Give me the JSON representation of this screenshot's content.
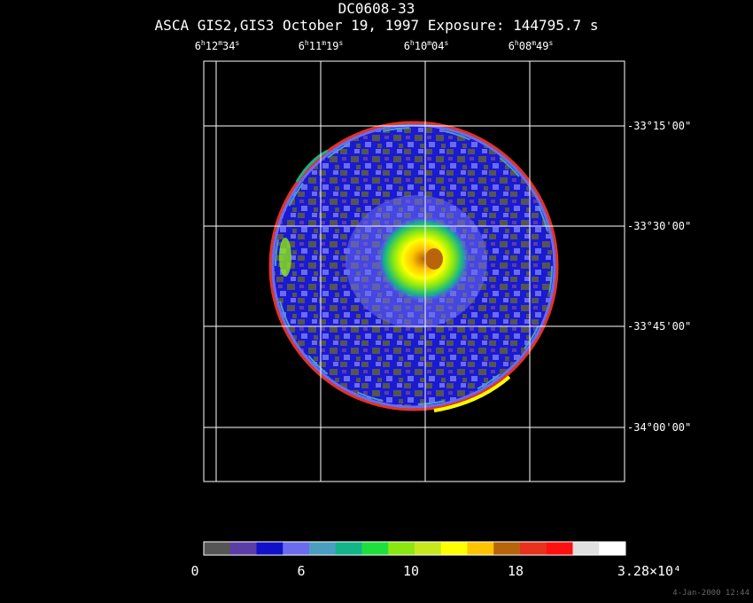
{
  "title": "DC0608-33",
  "subtitle": "ASCA GIS2,GIS3 October 19, 1997 Exposure: 144795.7 s",
  "ra_labels": [
    {
      "h": "6",
      "m": "12",
      "s": "34"
    },
    {
      "h": "6",
      "m": "11",
      "s": "19"
    },
    {
      "h": "6",
      "m": "10",
      "s": "04"
    },
    {
      "h": "6",
      "m": "08",
      "s": "49"
    }
  ],
  "dec_labels": [
    "-33°15'00\"",
    "-33°30'00\"",
    "-33°45'00\"",
    "-34°00'00\""
  ],
  "colorbar": {
    "colors": [
      "#555555",
      "#5b3da8",
      "#1010c8",
      "#6b6bef",
      "#4a9ec0",
      "#12b48a",
      "#1ee03c",
      "#8ae810",
      "#c8e81e",
      "#ffff00",
      "#ffc400",
      "#b8640a",
      "#e8321e",
      "#ff1010",
      "#e0e0e0",
      "#ffffff"
    ],
    "tick_labels": [
      "0",
      "6",
      "10",
      "18",
      "3.28×10⁴"
    ]
  },
  "timestamp": "4-Jan-2000 12:44"
}
